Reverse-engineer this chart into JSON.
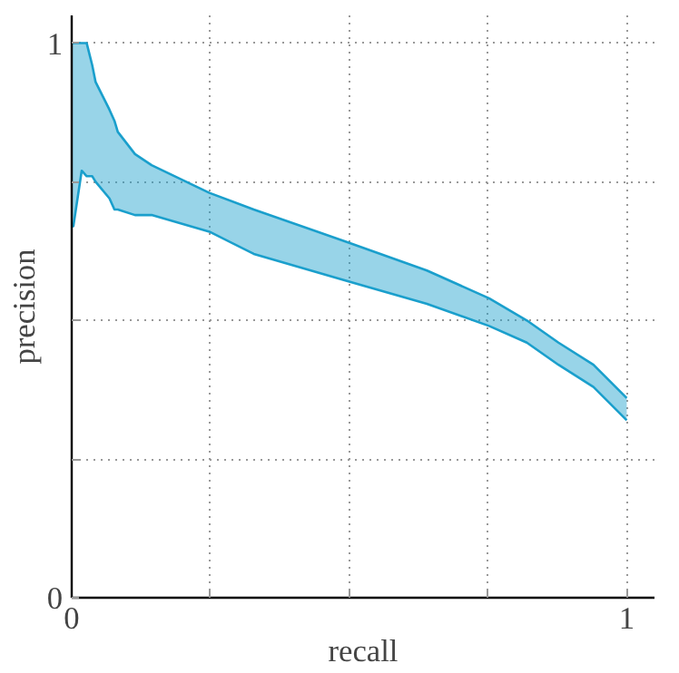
{
  "chart_data": {
    "type": "line",
    "xlabel": "recall",
    "ylabel": "precision",
    "x": [
      0,
      0.003,
      0.018,
      0.027,
      0.037,
      0.043,
      0.068,
      0.077,
      0.083,
      0.114,
      0.144,
      0.248,
      0.328,
      0.5,
      0.64,
      0.752,
      0.82,
      0.877,
      0.94,
      1
    ],
    "series": [
      {
        "color": "#1a9fcc",
        "values": [
          0.67,
          0.67,
          0.77,
          0.76,
          0.76,
          0.75,
          0.72,
          0.7,
          0.7,
          0.69,
          0.69,
          0.66,
          0.62,
          0.57,
          0.53,
          0.49,
          0.46,
          0.42,
          0.38,
          0.32
        ],
        "lower": [
          0.67,
          0.67,
          0.77,
          0.76,
          0.76,
          0.75,
          0.72,
          0.7,
          0.7,
          0.69,
          0.69,
          0.66,
          0.62,
          0.57,
          0.53,
          0.49,
          0.46,
          0.42,
          0.38,
          0.32
        ],
        "upper": [
          1,
          1,
          1,
          1,
          0.96,
          0.93,
          0.88,
          0.86,
          0.84,
          0.8,
          0.78,
          0.73,
          0.7,
          0.64,
          0.59,
          0.54,
          0.5,
          0.46,
          0.42,
          0.36
        ]
      },
      {
        "color": "#1a9fcc",
        "values": [
          1,
          1,
          1,
          1,
          0.96,
          0.93,
          0.88,
          0.86,
          0.84,
          0.8,
          0.78,
          0.73,
          0.7,
          0.64,
          0.59,
          0.54,
          0.5,
          0.46,
          0.42,
          0.36
        ]
      }
    ],
    "xlim": [
      0,
      1.05
    ],
    "ylim": [
      0,
      1.05
    ],
    "xticks": [
      0,
      {
        "value": 0.25,
        "label": null
      },
      {
        "value": 0.5,
        "label": null
      },
      {
        "value": 0.75,
        "label": null
      },
      1
    ],
    "yticks": [
      0,
      {
        "value": 0.25,
        "label": null
      },
      {
        "value": 0.5,
        "label": null
      },
      {
        "value": 0.75,
        "label": null
      },
      1
    ],
    "grid": true
  }
}
